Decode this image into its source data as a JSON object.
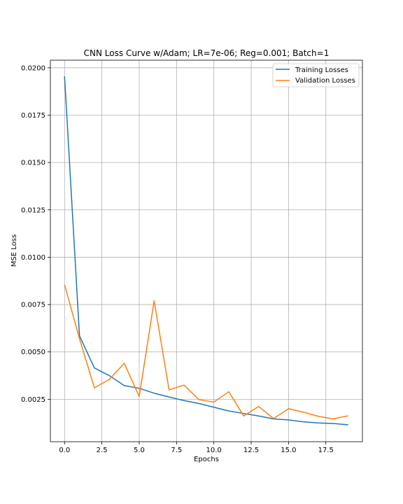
{
  "chart_data": {
    "type": "line",
    "title": "CNN Loss Curve w/Adam; LR=7e-06; Reg=0.001; Batch=1",
    "xlabel": "Epochs",
    "ylabel": "MSE Loss",
    "xlim": [
      -0.95,
      19.95
    ],
    "ylim": [
      0.00026,
      0.0204
    ],
    "xticks": [
      0.0,
      2.5,
      5.0,
      7.5,
      10.0,
      12.5,
      15.0,
      17.5
    ],
    "xtick_labels": [
      "0.0",
      "2.5",
      "5.0",
      "7.5",
      "10.0",
      "12.5",
      "15.0",
      "17.5"
    ],
    "yticks": [
      0.0025,
      0.005,
      0.0075,
      0.01,
      0.0125,
      0.015,
      0.0175,
      0.02
    ],
    "ytick_labels": [
      "0.0025",
      "0.0050",
      "0.0075",
      "0.0100",
      "0.0125",
      "0.0150",
      "0.0175",
      "0.0200"
    ],
    "grid": true,
    "legend_position": "top-right",
    "x": [
      0,
      1,
      2,
      3,
      4,
      5,
      6,
      7,
      8,
      9,
      10,
      11,
      12,
      13,
      14,
      15,
      16,
      17,
      18,
      19
    ],
    "series": [
      {
        "name": "Training Losses",
        "color": "#1f77b4",
        "values": [
          0.01955,
          0.00585,
          0.00415,
          0.00375,
          0.00322,
          0.00308,
          0.00282,
          0.00262,
          0.00243,
          0.00228,
          0.00208,
          0.00188,
          0.00175,
          0.00162,
          0.00146,
          0.00141,
          0.00131,
          0.00125,
          0.00122,
          0.00115
        ]
      },
      {
        "name": "Validation Losses",
        "color": "#ff7f0e",
        "values": [
          0.00855,
          0.0057,
          0.0031,
          0.00355,
          0.0044,
          0.00265,
          0.0077,
          0.003,
          0.00325,
          0.00248,
          0.00235,
          0.0029,
          0.00162,
          0.00212,
          0.00148,
          0.002,
          0.00182,
          0.0016,
          0.00146,
          0.00163
        ]
      }
    ]
  }
}
